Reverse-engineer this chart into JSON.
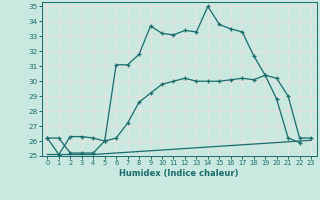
{
  "xlabel": "Humidex (Indice chaleur)",
  "xlim": [
    -0.5,
    23.5
  ],
  "ylim": [
    25,
    35.3
  ],
  "xticks": [
    0,
    1,
    2,
    3,
    4,
    5,
    6,
    7,
    8,
    9,
    10,
    11,
    12,
    13,
    14,
    15,
    16,
    17,
    18,
    19,
    20,
    21,
    22,
    23
  ],
  "yticks": [
    25,
    26,
    27,
    28,
    29,
    30,
    31,
    32,
    33,
    34,
    35
  ],
  "bg_color": "#c8e8e0",
  "grid_color": "#f0e0e0",
  "line_color": "#1a6b6b",
  "line1_x": [
    0,
    1,
    2,
    3,
    4,
    5,
    6,
    7,
    8,
    9,
    10,
    11,
    12,
    13,
    14,
    15,
    16,
    17,
    18,
    19,
    20,
    21,
    22,
    23
  ],
  "line1_y": [
    25.1,
    25.1,
    25.1,
    25.1,
    25.1,
    25.15,
    25.2,
    25.25,
    25.3,
    25.35,
    25.4,
    25.45,
    25.5,
    25.55,
    25.6,
    25.65,
    25.7,
    25.75,
    25.8,
    25.85,
    25.9,
    25.95,
    26.0,
    26.05
  ],
  "line2_x": [
    0,
    1,
    2,
    3,
    4,
    5,
    6,
    7,
    8,
    9,
    10,
    11,
    12,
    13,
    14,
    15,
    16,
    17,
    18,
    19,
    20,
    21,
    22,
    23
  ],
  "line2_y": [
    26.2,
    26.2,
    25.2,
    25.2,
    25.2,
    26.0,
    26.2,
    27.2,
    28.6,
    29.2,
    29.8,
    30.0,
    30.2,
    30.0,
    30.0,
    30.0,
    30.1,
    30.2,
    30.1,
    30.4,
    30.2,
    29.0,
    26.2,
    26.2
  ],
  "line2_markers_x": [
    0,
    1,
    2,
    3,
    4,
    5,
    6,
    7,
    8,
    9,
    10,
    11,
    12,
    13,
    14,
    15,
    16,
    17,
    18,
    19,
    20,
    21,
    22,
    23
  ],
  "line3_x": [
    0,
    1,
    2,
    3,
    4,
    5,
    6,
    7,
    8,
    9,
    10,
    11,
    12,
    13,
    14,
    15,
    16,
    17,
    18,
    19,
    20,
    21,
    22
  ],
  "line3_y": [
    26.2,
    25.1,
    26.3,
    26.3,
    26.2,
    26.0,
    31.1,
    31.1,
    31.8,
    33.7,
    33.2,
    33.1,
    33.4,
    33.3,
    35.0,
    33.8,
    33.5,
    33.3,
    31.7,
    30.4,
    28.8,
    26.2,
    25.9
  ]
}
